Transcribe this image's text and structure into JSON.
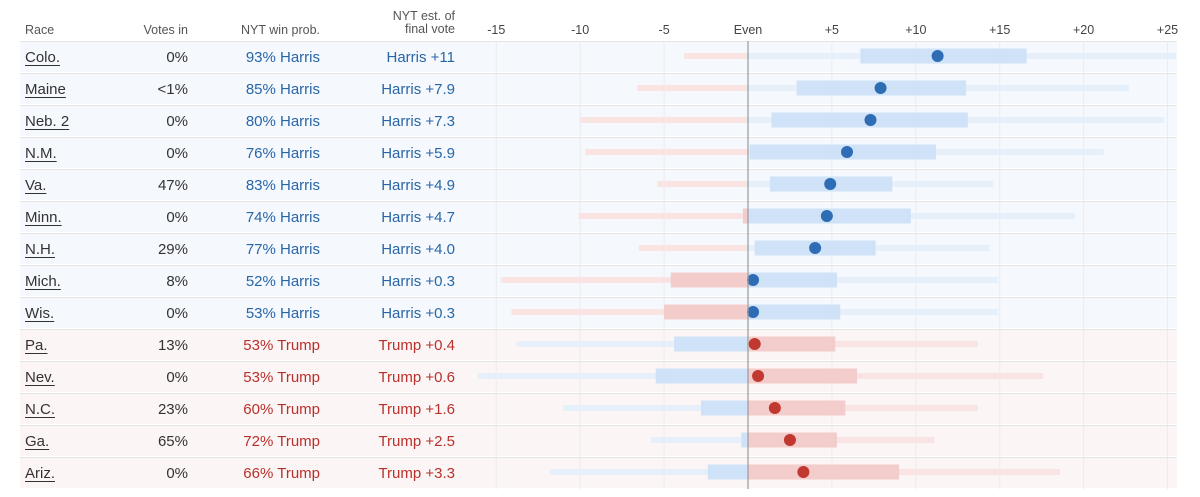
{
  "headers": {
    "race": "Race",
    "votes_in": "Votes in",
    "win_prob": "NYT win prob.",
    "est_line1": "NYT est. of",
    "est_line2": "final vote"
  },
  "colors": {
    "harris_text": "#2866a8",
    "trump_text": "#b8302c",
    "harris_dot": "#2e6db4",
    "trump_dot": "#c0382f",
    "harris_dark_band": "#cfe2f7",
    "harris_light_band": "#e5f0fb",
    "trump_dark_band": "#f3cccc",
    "trump_light_band": "#f9e3e3",
    "even_line": "#9a9a9a",
    "grid": "#ececec"
  },
  "chart_data": {
    "type": "dot-with-uncertainty-bands",
    "title": "NYT est. of final vote",
    "x_axis": {
      "range": [
        -15,
        25
      ],
      "ticks": [
        -15,
        -10,
        -5,
        0,
        5,
        10,
        15,
        20,
        25
      ],
      "tick_labels": [
        "-15",
        "-10",
        "-5",
        "Even",
        "+5",
        "+10",
        "+15",
        "+20",
        "+25"
      ]
    },
    "rows": [
      {
        "race": "Colo.",
        "votes_in": "0%",
        "prob": "93% Harris",
        "est": "Harris +11",
        "party": "harris",
        "value": 11.3,
        "inner": [
          6.7,
          16.6
        ],
        "outer": [
          -3.8,
          25.5
        ]
      },
      {
        "race": "Maine",
        "votes_in": "<1%",
        "prob": "85% Harris",
        "est": "Harris +7.9",
        "party": "harris",
        "value": 7.9,
        "inner": [
          2.9,
          13.0
        ],
        "outer": [
          -6.6,
          22.7
        ]
      },
      {
        "race": "Neb. 2",
        "votes_in": "0%",
        "prob": "80% Harris",
        "est": "Harris +7.3",
        "party": "harris",
        "value": 7.3,
        "inner": [
          1.4,
          13.1
        ],
        "outer": [
          -10.0,
          24.8
        ]
      },
      {
        "race": "N.M.",
        "votes_in": "0%",
        "prob": "76% Harris",
        "est": "Harris +5.9",
        "party": "harris",
        "value": 5.9,
        "inner": [
          0.1,
          11.2
        ],
        "outer": [
          -9.7,
          21.2
        ]
      },
      {
        "race": "Va.",
        "votes_in": "47%",
        "prob": "83% Harris",
        "est": "Harris +4.9",
        "party": "harris",
        "value": 4.9,
        "inner": [
          1.3,
          8.6
        ],
        "outer": [
          -5.4,
          14.6
        ]
      },
      {
        "race": "Minn.",
        "votes_in": "0%",
        "prob": "74% Harris",
        "est": "Harris +4.7",
        "party": "harris",
        "value": 4.7,
        "inner": [
          -0.3,
          9.7
        ],
        "outer": [
          -10.1,
          19.5
        ]
      },
      {
        "race": "N.H.",
        "votes_in": "29%",
        "prob": "77% Harris",
        "est": "Harris +4.0",
        "party": "harris",
        "value": 4.0,
        "inner": [
          0.4,
          7.6
        ],
        "outer": [
          -6.5,
          14.4
        ]
      },
      {
        "race": "Mich.",
        "votes_in": "8%",
        "prob": "52% Harris",
        "est": "Harris +0.3",
        "party": "harris",
        "value": 0.3,
        "inner": [
          -4.6,
          5.3
        ],
        "outer": [
          -14.7,
          14.9
        ]
      },
      {
        "race": "Wis.",
        "votes_in": "0%",
        "prob": "53% Harris",
        "est": "Harris +0.3",
        "party": "harris",
        "value": 0.3,
        "inner": [
          -5.0,
          5.5
        ],
        "outer": [
          -14.1,
          14.9
        ]
      },
      {
        "race": "Pa.",
        "votes_in": "13%",
        "prob": "53% Trump",
        "est": "Trump +0.4",
        "party": "trump",
        "value": 0.4,
        "inner": [
          -4.4,
          5.2
        ],
        "outer": [
          -13.8,
          13.7
        ]
      },
      {
        "race": "Nev.",
        "votes_in": "0%",
        "prob": "53% Trump",
        "est": "Trump +0.6",
        "party": "trump",
        "value": 0.6,
        "inner": [
          -5.5,
          6.5
        ],
        "outer": [
          -16.1,
          17.6
        ]
      },
      {
        "race": "N.C.",
        "votes_in": "23%",
        "prob": "60% Trump",
        "est": "Trump +1.6",
        "party": "trump",
        "value": 1.6,
        "inner": [
          -2.8,
          5.8
        ],
        "outer": [
          -11.0,
          13.7
        ]
      },
      {
        "race": "Ga.",
        "votes_in": "65%",
        "prob": "72% Trump",
        "est": "Trump +2.5",
        "party": "trump",
        "value": 2.5,
        "inner": [
          -0.4,
          5.3
        ],
        "outer": [
          -5.8,
          11.1
        ]
      },
      {
        "race": "Ariz.",
        "votes_in": "0%",
        "prob": "66% Trump",
        "est": "Trump +3.3",
        "party": "trump",
        "value": 3.3,
        "inner": [
          -2.4,
          9.0
        ],
        "outer": [
          -11.8,
          18.6
        ]
      }
    ]
  }
}
